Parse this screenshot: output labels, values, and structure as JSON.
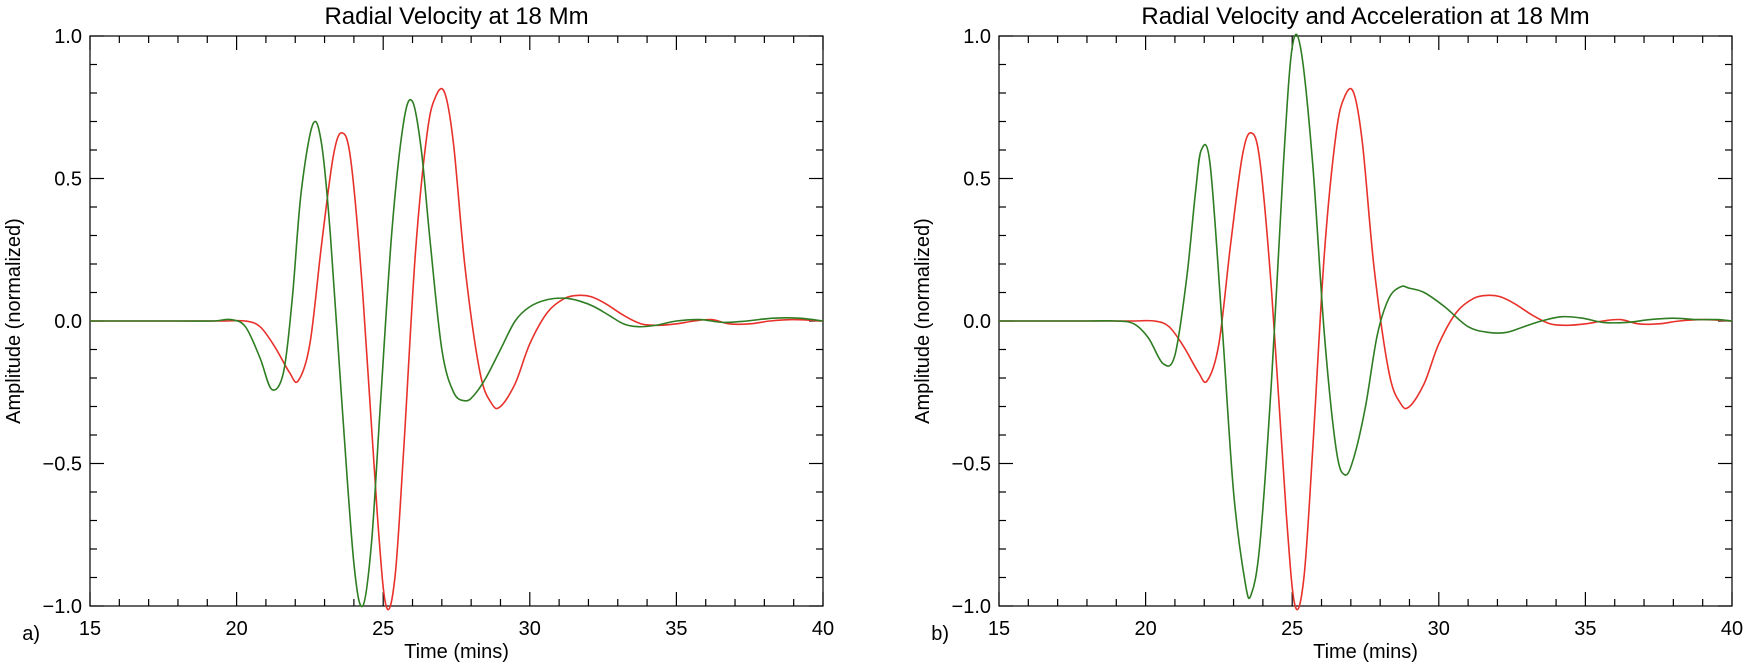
{
  "chart_data": [
    {
      "type": "line",
      "panel_label": "a)",
      "title": "Radial Velocity at 18 Mm",
      "xlabel": "Time (mins)",
      "ylabel": "Amplitude (normalized)",
      "xlim": [
        15,
        40
      ],
      "ylim": [
        -1.0,
        1.0
      ],
      "x_ticks": [
        15,
        20,
        25,
        30,
        35,
        40
      ],
      "x_tick_labels": [
        "15",
        "20",
        "25",
        "30",
        "35",
        "40"
      ],
      "y_ticks": [
        -1.0,
        -0.5,
        0.0,
        0.5,
        1.0
      ],
      "y_tick_labels": [
        "−1.0",
        "−0.5",
        "0.0",
        "0.5",
        "1.0"
      ],
      "grid": false,
      "series": [
        {
          "name": "red",
          "color": "#e8312a",
          "x": [
            15,
            18,
            19.5,
            20.3,
            20.8,
            21.3,
            21.8,
            22.1,
            22.5,
            22.9,
            23.3,
            23.6,
            23.9,
            24.3,
            24.8,
            25.1,
            25.4,
            25.7,
            26.1,
            26.5,
            26.8,
            27.1,
            27.4,
            27.8,
            28.3,
            28.7,
            29.0,
            29.5,
            30.0,
            30.6,
            31.2,
            31.7,
            32.1,
            32.6,
            33.2,
            33.8,
            34.4,
            35.0,
            35.6,
            36.2,
            36.8,
            37.5,
            38.2,
            39.0,
            40
          ],
          "values": [
            0,
            0,
            0,
            0.0,
            -0.02,
            -0.09,
            -0.18,
            -0.21,
            -0.08,
            0.27,
            0.58,
            0.66,
            0.56,
            0.1,
            -0.68,
            -1.0,
            -0.9,
            -0.45,
            0.24,
            0.66,
            0.79,
            0.8,
            0.62,
            0.18,
            -0.18,
            -0.29,
            -0.3,
            -0.22,
            -0.08,
            0.03,
            0.08,
            0.09,
            0.085,
            0.06,
            0.02,
            -0.01,
            -0.015,
            -0.01,
            0.0,
            0.005,
            -0.01,
            -0.01,
            0.0,
            0.005,
            0.0
          ]
        },
        {
          "name": "green",
          "color": "#2e7d22",
          "x": [
            15,
            18,
            19.2,
            19.8,
            20.3,
            20.8,
            21.2,
            21.6,
            21.9,
            22.2,
            22.6,
            22.9,
            23.2,
            23.6,
            24.0,
            24.3,
            24.6,
            24.9,
            25.3,
            25.7,
            26.0,
            26.3,
            26.6,
            27.0,
            27.4,
            27.8,
            28.1,
            28.5,
            29.0,
            29.5,
            30.0,
            30.6,
            31.2,
            31.7,
            32.2,
            32.7,
            33.2,
            33.7,
            34.3,
            35.0,
            35.8,
            36.6,
            37.4,
            38.3,
            39.2,
            40
          ],
          "values": [
            0,
            0,
            0,
            0.005,
            -0.02,
            -0.13,
            -0.24,
            -0.18,
            0.08,
            0.45,
            0.69,
            0.62,
            0.3,
            -0.3,
            -0.85,
            -1.0,
            -0.78,
            -0.3,
            0.32,
            0.7,
            0.77,
            0.6,
            0.28,
            -0.1,
            -0.25,
            -0.28,
            -0.26,
            -0.2,
            -0.1,
            0.0,
            0.05,
            0.075,
            0.08,
            0.07,
            0.05,
            0.02,
            -0.01,
            -0.02,
            -0.015,
            0.0,
            0.005,
            -0.005,
            0.0,
            0.01,
            0.01,
            0.0
          ]
        }
      ]
    },
    {
      "type": "line",
      "panel_label": "b)",
      "title": "Radial Velocity and Acceleration at 18 Mm",
      "xlabel": "Time (mins)",
      "ylabel": "Amplitude (normalized)",
      "xlim": [
        15,
        40
      ],
      "ylim": [
        -1.0,
        1.0
      ],
      "x_ticks": [
        15,
        20,
        25,
        30,
        35,
        40
      ],
      "x_tick_labels": [
        "15",
        "20",
        "25",
        "30",
        "35",
        "40"
      ],
      "y_ticks": [
        -1.0,
        -0.5,
        0.0,
        0.5,
        1.0
      ],
      "y_tick_labels": [
        "−1.0",
        "−0.5",
        "0.0",
        "0.5",
        "1.0"
      ],
      "grid": false,
      "series": [
        {
          "name": "red",
          "color": "#e8312a",
          "x": [
            15,
            18,
            19.5,
            20.3,
            20.8,
            21.3,
            21.8,
            22.1,
            22.5,
            22.9,
            23.3,
            23.6,
            23.9,
            24.3,
            24.8,
            25.1,
            25.4,
            25.7,
            26.1,
            26.5,
            26.8,
            27.1,
            27.4,
            27.8,
            28.3,
            28.7,
            29.0,
            29.5,
            30.0,
            30.6,
            31.2,
            31.7,
            32.1,
            32.6,
            33.2,
            33.8,
            34.4,
            35.0,
            35.6,
            36.2,
            36.8,
            37.5,
            38.2,
            39.0,
            40
          ],
          "values": [
            0,
            0,
            0,
            0.0,
            -0.02,
            -0.09,
            -0.18,
            -0.21,
            -0.08,
            0.27,
            0.58,
            0.66,
            0.56,
            0.1,
            -0.68,
            -1.0,
            -0.9,
            -0.45,
            0.24,
            0.66,
            0.79,
            0.8,
            0.62,
            0.18,
            -0.18,
            -0.29,
            -0.3,
            -0.22,
            -0.08,
            0.03,
            0.08,
            0.09,
            0.085,
            0.06,
            0.02,
            -0.01,
            -0.015,
            -0.01,
            0.0,
            0.005,
            -0.01,
            -0.01,
            0.0,
            0.005,
            0.0
          ]
        },
        {
          "name": "green",
          "color": "#2e7d22",
          "x": [
            15,
            18,
            19.0,
            19.6,
            20.1,
            20.6,
            21.0,
            21.4,
            21.7,
            21.9,
            22.2,
            22.6,
            23.0,
            23.4,
            23.6,
            23.9,
            24.3,
            24.7,
            25.0,
            25.3,
            25.7,
            26.1,
            26.5,
            26.8,
            27.1,
            27.5,
            27.9,
            28.3,
            28.7,
            29.0,
            29.5,
            30.2,
            31.0,
            31.7,
            32.3,
            32.9,
            33.5,
            34.2,
            34.9,
            35.6,
            36.4,
            37.2,
            38.0,
            38.8,
            39.5,
            40
          ],
          "values": [
            0,
            0,
            0,
            -0.01,
            -0.06,
            -0.15,
            -0.12,
            0.15,
            0.45,
            0.6,
            0.55,
            0.0,
            -0.6,
            -0.92,
            -0.96,
            -0.78,
            -0.2,
            0.55,
            0.96,
            0.95,
            0.55,
            -0.05,
            -0.45,
            -0.54,
            -0.48,
            -0.3,
            -0.05,
            0.08,
            0.12,
            0.115,
            0.1,
            0.05,
            -0.02,
            -0.04,
            -0.04,
            -0.02,
            0.0,
            0.015,
            0.01,
            -0.005,
            -0.005,
            0.005,
            0.01,
            0.005,
            0.005,
            0.0
          ]
        }
      ]
    }
  ]
}
